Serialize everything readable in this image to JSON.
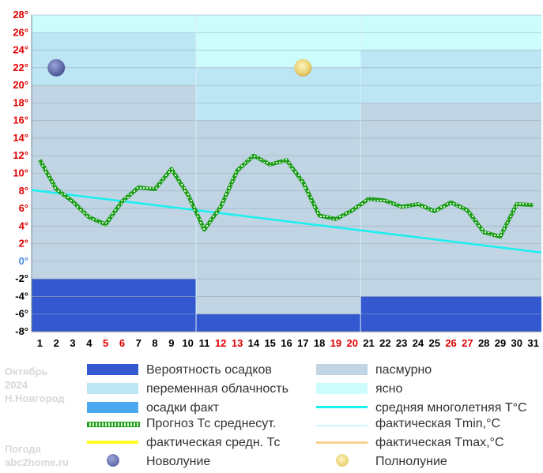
{
  "side": {
    "month": "Октябрь",
    "year": "2024",
    "city": "Н.Новгород",
    "line1": "Погода",
    "line2": "abc2home.ru"
  },
  "legend": {
    "precip_prob": "Вероятность осадков",
    "overcast": "пасмурно",
    "variable": "переменная облачность",
    "clear": "ясно",
    "precip_fact": "осадки факт",
    "avg_longterm": "средняя многолетняя T°C",
    "forecast_avg": "Прогноз Тс среднесут.",
    "fact_min": "фактическая Tmin,°C",
    "fact_avg": "фактическая средн. Тс",
    "fact_max": "фактическая Tmax,°C",
    "new_moon": "Новолуние",
    "full_moon": "Полнолуние"
  },
  "colors": {
    "overcast": "#c0d4e4",
    "variable": "#bde6f5",
    "clear": "#ccfcfc",
    "precip_prob": "#3358d0",
    "precip_fact": "#4aa8f0",
    "forecast": "#1e9c1e",
    "avg_longterm": "#18f0f0",
    "fact_min": "#c8f8ff",
    "fact_avg": "#ffff22",
    "fact_max": "#f8d090",
    "weekday_label": "#000000",
    "weekend_label": "#e00000",
    "pos_tick": "#e00000",
    "neg_tick": "#000000",
    "zero_tick": "#4a8ae0"
  },
  "chart_data": {
    "type": "line",
    "ylim": [
      -8,
      28
    ],
    "yticks": [
      {
        "v": 28,
        "label": "28°"
      },
      {
        "v": 26,
        "label": "26°"
      },
      {
        "v": 24,
        "label": "24°"
      },
      {
        "v": 22,
        "label": "22°"
      },
      {
        "v": 20,
        "label": "20°"
      },
      {
        "v": 18,
        "label": "18°"
      },
      {
        "v": 16,
        "label": "16°"
      },
      {
        "v": 14,
        "label": "14°"
      },
      {
        "v": 12,
        "label": "12°"
      },
      {
        "v": 10,
        "label": "10°"
      },
      {
        "v": 8,
        "label": "8°"
      },
      {
        "v": 6,
        "label": "6°"
      },
      {
        "v": 4,
        "label": "4°"
      },
      {
        "v": 2,
        "label": "2°"
      },
      {
        "v": 0,
        "label": "0°"
      },
      {
        "v": -2,
        "label": "-2°"
      },
      {
        "v": -4,
        "label": "-4°"
      },
      {
        "v": -6,
        "label": "-6°"
      },
      {
        "v": -8,
        "label": "-8°"
      }
    ],
    "days": [
      "1",
      "2",
      "3",
      "4",
      "5",
      "6",
      "7",
      "8",
      "9",
      "10",
      "11",
      "12",
      "13",
      "14",
      "15",
      "16",
      "17",
      "18",
      "19",
      "20",
      "21",
      "22",
      "23",
      "24",
      "25",
      "26",
      "27",
      "28",
      "29",
      "30",
      "31"
    ],
    "weekend_days": [
      "5",
      "6",
      "12",
      "13",
      "19",
      "20",
      "26",
      "27"
    ],
    "series": [
      {
        "name": "Прогноз Тс среднесут.",
        "x": [
          1,
          2,
          3,
          4,
          5,
          6,
          7,
          8,
          9,
          10,
          11,
          12,
          13,
          14,
          15,
          16,
          17,
          18,
          19,
          20,
          21,
          22,
          23,
          24,
          25,
          26,
          27,
          28,
          29,
          30,
          31
        ],
        "values": [
          11.5,
          8.2,
          6.8,
          5.0,
          4.2,
          6.8,
          8.4,
          8.2,
          10.5,
          7.6,
          3.6,
          6.2,
          10.3,
          12.0,
          11.0,
          11.5,
          9.0,
          5.2,
          4.8,
          5.8,
          7.1,
          6.9,
          6.2,
          6.5,
          5.7,
          6.7,
          5.8,
          3.3,
          2.8,
          6.5,
          6.4
        ]
      },
      {
        "name": "средняя многолетняя T°C",
        "x": [
          0.5,
          31.5
        ],
        "values": [
          8.1,
          1.0
        ]
      }
    ],
    "periods": [
      {
        "from": 0.5,
        "to": 10.5,
        "overcast_from": -8,
        "overcast_to": 20,
        "variable_to": 26,
        "clear_to": 30,
        "precip_prob_to": -2
      },
      {
        "from": 10.5,
        "to": 20.5,
        "overcast_from": -8,
        "overcast_to": 16,
        "variable_to": 22,
        "clear_to": 30,
        "precip_prob_to": -6
      },
      {
        "from": 20.5,
        "to": 31.5,
        "overcast_from": -8,
        "overcast_to": 18,
        "variable_to": 24,
        "clear_to": 30,
        "precip_prob_to": -4
      }
    ],
    "moons": [
      {
        "phase": "new_moon",
        "x": 2,
        "y": 22
      },
      {
        "phase": "full_moon",
        "x": 17,
        "y": 22
      }
    ]
  }
}
